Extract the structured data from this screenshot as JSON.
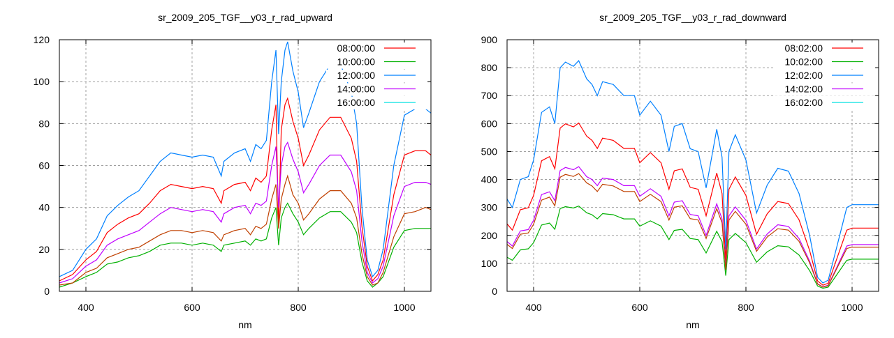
{
  "chart_data": [
    {
      "type": "line",
      "title": "sr_2009_205_TGF__y03_r_rad_upward",
      "xlabel": "nm",
      "ylabel": "",
      "xlim": [
        350,
        1050
      ],
      "ylim": [
        0,
        120
      ],
      "xticks": [
        400,
        600,
        800,
        1000
      ],
      "yticks": [
        0,
        20,
        40,
        60,
        80,
        100,
        120
      ],
      "grid": true,
      "legend_position": "top-right",
      "x": [
        350,
        375,
        400,
        420,
        440,
        460,
        480,
        500,
        520,
        540,
        560,
        580,
        600,
        620,
        640,
        655,
        660,
        680,
        700,
        710,
        720,
        730,
        740,
        750,
        758,
        763,
        768,
        775,
        780,
        790,
        800,
        810,
        820,
        840,
        860,
        880,
        900,
        910,
        920,
        930,
        940,
        950,
        960,
        980,
        1000,
        1020,
        1040,
        1050
      ],
      "series": [
        {
          "name": "08:00:00",
          "color": "#ff0000",
          "legend_color": "#ff0000",
          "values": [
            5,
            8,
            15,
            19,
            28,
            32,
            35,
            37,
            42,
            48,
            51,
            50,
            49,
            50,
            49,
            42,
            48,
            51,
            52,
            48,
            54,
            52,
            55,
            77,
            89,
            30,
            77,
            89,
            92,
            81,
            73,
            60,
            65,
            77,
            83,
            83,
            73,
            62,
            31,
            12,
            5,
            8,
            15,
            46,
            65,
            67,
            67,
            65
          ]
        },
        {
          "name": "10:00:00",
          "color": "#00b000",
          "legend_color": "#00b000",
          "values": [
            2,
            4,
            7,
            9,
            13,
            14,
            16,
            17,
            19,
            22,
            23,
            23,
            22,
            23,
            22,
            19,
            22,
            23,
            24,
            22,
            25,
            24,
            25,
            35,
            40,
            22,
            35,
            40,
            42,
            37,
            33,
            27,
            30,
            35,
            38,
            38,
            33,
            28,
            14,
            5,
            2,
            4,
            7,
            21,
            29,
            30,
            30,
            30
          ]
        },
        {
          "name": "12:00:00",
          "color": "#0080ff",
          "legend_color": "#0080ff",
          "values": [
            7,
            10,
            20,
            25,
            36,
            41,
            45,
            48,
            55,
            62,
            66,
            65,
            64,
            65,
            64,
            55,
            62,
            66,
            68,
            62,
            70,
            68,
            72,
            100,
            115,
            75,
            100,
            115,
            119,
            105,
            95,
            78,
            85,
            100,
            108,
            108,
            95,
            80,
            40,
            15,
            7,
            10,
            20,
            60,
            84,
            87,
            87,
            85
          ]
        },
        {
          "name": "14:00:00",
          "color": "#c000ff",
          "legend_color": "#c000ff",
          "values": [
            4,
            6,
            12,
            15,
            22,
            25,
            27,
            29,
            33,
            37,
            40,
            39,
            38,
            39,
            38,
            33,
            37,
            40,
            41,
            37,
            42,
            41,
            43,
            60,
            69,
            40,
            60,
            69,
            71,
            63,
            57,
            47,
            51,
            60,
            65,
            65,
            57,
            48,
            24,
            9,
            4,
            6,
            12,
            36,
            50,
            52,
            52,
            51
          ]
        },
        {
          "name": "16:00:00",
          "color": "#c04000",
          "legend_color": "#00e0e0",
          "values": [
            3,
            4,
            9,
            11,
            16,
            18,
            20,
            21,
            24,
            27,
            29,
            29,
            28,
            29,
            28,
            24,
            27,
            29,
            30,
            27,
            31,
            30,
            32,
            44,
            51,
            30,
            44,
            51,
            55,
            46,
            42,
            34,
            37,
            44,
            48,
            48,
            42,
            35,
            18,
            7,
            3,
            4,
            9,
            26,
            37,
            38,
            40,
            39
          ]
        }
      ]
    },
    {
      "type": "line",
      "title": "sr_2009_205_TGF__y03_r_rad_downward",
      "xlabel": "nm",
      "ylabel": "",
      "xlim": [
        350,
        1050
      ],
      "ylim": [
        0,
        900
      ],
      "xticks": [
        400,
        600,
        800,
        1000
      ],
      "yticks": [
        0,
        100,
        200,
        300,
        400,
        500,
        600,
        700,
        800,
        900
      ],
      "grid": true,
      "legend_position": "top-right",
      "x": [
        350,
        360,
        375,
        390,
        400,
        415,
        430,
        440,
        450,
        460,
        475,
        485,
        500,
        510,
        520,
        530,
        550,
        570,
        590,
        600,
        620,
        640,
        655,
        665,
        680,
        695,
        710,
        725,
        745,
        755,
        762,
        768,
        780,
        800,
        820,
        840,
        860,
        880,
        900,
        920,
        935,
        945,
        955,
        970,
        990,
        1000,
        1050
      ],
      "series": [
        {
          "name": "08:02:00",
          "color": "#ff0000",
          "legend_color": "#ff0000",
          "values": [
            241,
            219,
            292,
            299,
            343,
            467,
            482,
            438,
            584,
            599,
            588,
            602,
            555,
            540,
            511,
            548,
            540,
            511,
            511,
            460,
            496,
            460,
            365,
            431,
            438,
            372,
            365,
            270,
            423,
            350,
            110,
            365,
            409,
            343,
            204,
            277,
            321,
            314,
            256,
            146,
            37,
            22,
            29,
            110,
            219,
            226,
            226
          ]
        },
        {
          "name": "10:02:00",
          "color": "#00b000",
          "legend_color": "#00b000",
          "values": [
            122,
            111,
            148,
            152,
            174,
            237,
            244,
            222,
            296,
            303,
            298,
            305,
            281,
            274,
            259,
            278,
            274,
            259,
            259,
            233,
            252,
            233,
            185,
            218,
            222,
            189,
            185,
            137,
            215,
            178,
            56,
            185,
            207,
            174,
            104,
            141,
            163,
            159,
            130,
            74,
            19,
            11,
            15,
            56,
            111,
            115,
            115
          ]
        },
        {
          "name": "12:02:00",
          "color": "#0080ff",
          "legend_color": "#0080ff",
          "values": [
            330,
            300,
            400,
            410,
            470,
            640,
            660,
            600,
            800,
            820,
            805,
            825,
            760,
            740,
            700,
            750,
            740,
            700,
            700,
            630,
            680,
            630,
            500,
            590,
            600,
            510,
            500,
            370,
            580,
            480,
            150,
            500,
            560,
            470,
            280,
            380,
            440,
            430,
            350,
            200,
            50,
            30,
            40,
            150,
            300,
            310,
            310
          ]
        },
        {
          "name": "14:02:00",
          "color": "#c000ff",
          "legend_color": "#c000ff",
          "values": [
            178,
            162,
            216,
            221,
            254,
            346,
            356,
            324,
            432,
            443,
            435,
            446,
            410,
            400,
            378,
            405,
            400,
            378,
            378,
            340,
            367,
            340,
            270,
            319,
            324,
            275,
            270,
            200,
            313,
            259,
            81,
            270,
            302,
            254,
            151,
            205,
            238,
            232,
            189,
            108,
            27,
            16,
            22,
            81,
            162,
            167,
            167
          ]
        },
        {
          "name": "16:02:00",
          "color": "#c04000",
          "legend_color": "#00e0e0",
          "values": [
            168,
            153,
            204,
            209,
            240,
            326,
            337,
            306,
            408,
            418,
            411,
            421,
            388,
            377,
            357,
            383,
            377,
            357,
            357,
            321,
            347,
            321,
            255,
            301,
            306,
            260,
            255,
            189,
            296,
            245,
            77,
            255,
            286,
            240,
            143,
            194,
            224,
            219,
            179,
            102,
            26,
            15,
            20,
            77,
            153,
            158,
            158
          ]
        }
      ]
    }
  ]
}
